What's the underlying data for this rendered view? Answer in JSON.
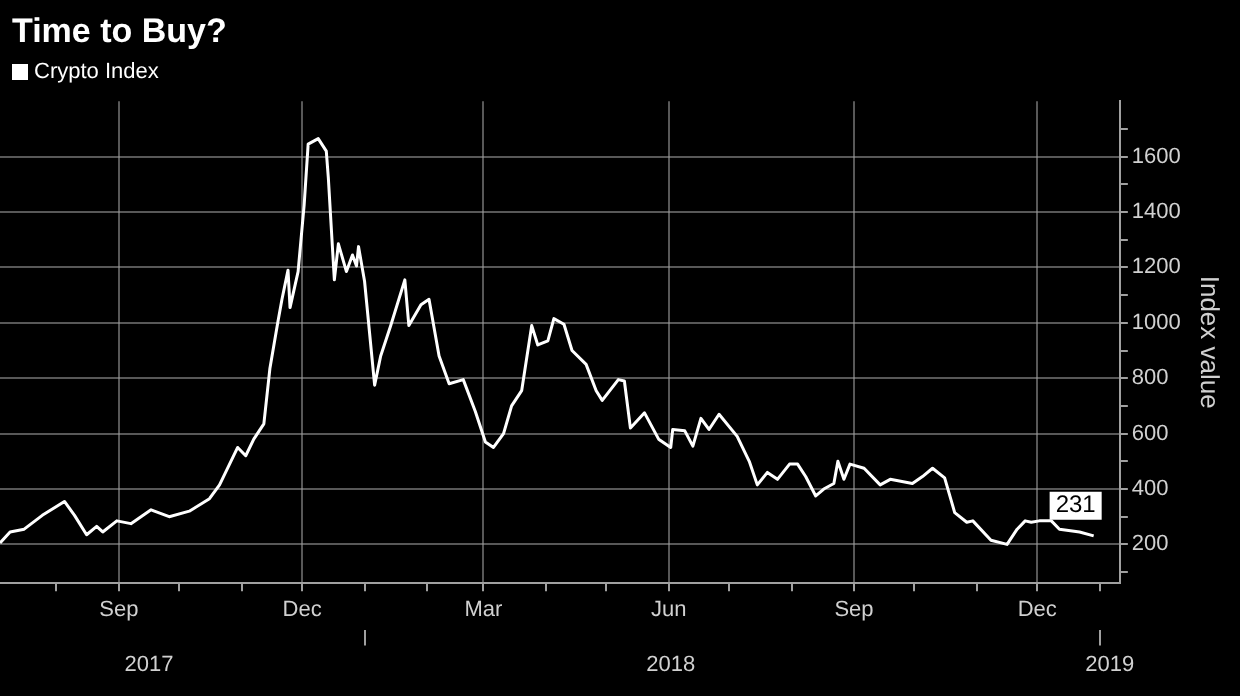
{
  "chart_data": {
    "type": "line",
    "title": "Time to Buy?",
    "ylabel": "Index value",
    "legend": "top left",
    "grid": true,
    "marker": "none",
    "line_style": "solid",
    "xlim": [
      "2017-07-04",
      "2019-01-11"
    ],
    "xticks": [
      {
        "value": "2017-08-01",
        "label": null
      },
      {
        "value": "2017-09-01",
        "label": "Sep"
      },
      {
        "value": "2017-10-01",
        "label": null
      },
      {
        "value": "2017-11-01",
        "label": null
      },
      {
        "value": "2017-12-01",
        "label": "Dec"
      },
      {
        "value": "2018-01-01",
        "label": null
      },
      {
        "value": "2018-02-01",
        "label": null
      },
      {
        "value": "2018-03-01",
        "label": "Mar"
      },
      {
        "value": "2018-04-01",
        "label": null
      },
      {
        "value": "2018-05-01",
        "label": null
      },
      {
        "value": "2018-06-01",
        "label": "Jun"
      },
      {
        "value": "2018-07-01",
        "label": null
      },
      {
        "value": "2018-08-01",
        "label": null
      },
      {
        "value": "2018-09-01",
        "label": "Sep"
      },
      {
        "value": "2018-10-01",
        "label": null
      },
      {
        "value": "2018-11-01",
        "label": null
      },
      {
        "value": "2018-12-01",
        "label": "Dec"
      },
      {
        "value": "2019-01-01",
        "label": null
      }
    ],
    "x2lim": [
      "2017-07-04",
      "2019-01-11"
    ],
    "x2ticks": [
      {
        "value": "2017-09-16",
        "label": "2017"
      },
      {
        "value": "2018-01-01",
        "label": null
      },
      {
        "value": "2018-06-02",
        "label": "2018"
      },
      {
        "value": "2019-01-01",
        "label": null
      },
      {
        "value": "2019-01-06",
        "label": "2019"
      }
    ],
    "ylim": [
      60,
      1800
    ],
    "yticks": [
      {
        "value": 100,
        "label": null
      },
      200,
      {
        "value": 300,
        "label": null
      },
      400,
      {
        "value": 500,
        "label": null
      },
      600,
      {
        "value": 700,
        "label": null
      },
      800,
      {
        "value": 900,
        "label": null
      },
      1000,
      {
        "value": 1100,
        "label": null
      },
      1200,
      {
        "value": 1300,
        "label": null
      },
      1400,
      {
        "value": 1500,
        "label": null
      },
      1600,
      {
        "value": 1700,
        "label": null
      }
    ],
    "annotations": [
      {
        "text": "231",
        "x": "2018-12-29",
        "y": 231
      }
    ],
    "series": [
      {
        "name": "Crypto Index",
        "color": "#ffffff",
        "x": [
          "2017-07-04",
          "2017-07-09",
          "2017-07-16",
          "2017-07-25",
          "2017-08-05",
          "2017-08-10",
          "2017-08-16",
          "2017-08-21",
          "2017-08-24",
          "2017-08-31",
          "2017-09-07",
          "2017-09-17",
          "2017-09-26",
          "2017-10-06",
          "2017-10-16",
          "2017-10-21",
          "2017-10-30",
          "2017-11-03",
          "2017-11-07",
          "2017-11-12",
          "2017-11-15",
          "2017-11-19",
          "2017-11-21",
          "2017-11-24",
          "2017-11-25",
          "2017-11-29",
          "2017-12-02",
          "2017-12-04",
          "2017-12-09",
          "2017-12-13",
          "2017-12-14",
          "2017-12-17",
          "2017-12-19",
          "2017-12-23",
          "2017-12-26",
          "2017-12-28",
          "2017-12-29",
          "2018-01-01",
          "2018-01-06",
          "2018-01-09",
          "2018-01-14",
          "2018-01-21",
          "2018-01-23",
          "2018-01-29",
          "2018-02-02",
          "2018-02-07",
          "2018-02-12",
          "2018-02-19",
          "2018-02-25",
          "2018-03-02",
          "2018-03-06",
          "2018-03-11",
          "2018-03-15",
          "2018-03-20",
          "2018-03-25",
          "2018-03-28",
          "2018-04-02",
          "2018-04-05",
          "2018-04-10",
          "2018-04-14",
          "2018-04-21",
          "2018-04-26",
          "2018-04-29",
          "2018-05-07",
          "2018-05-10",
          "2018-05-13",
          "2018-05-20",
          "2018-05-27",
          "2018-06-02",
          "2018-06-03",
          "2018-06-09",
          "2018-06-13",
          "2018-06-17",
          "2018-06-21",
          "2018-06-26",
          "2018-07-05",
          "2018-07-11",
          "2018-07-15",
          "2018-07-20",
          "2018-07-25",
          "2018-07-31",
          "2018-08-04",
          "2018-08-08",
          "2018-08-13",
          "2018-08-17",
          "2018-08-22",
          "2018-08-24",
          "2018-08-27",
          "2018-08-30",
          "2018-09-06",
          "2018-09-14",
          "2018-09-19",
          "2018-09-30",
          "2018-10-05",
          "2018-10-10",
          "2018-10-16",
          "2018-10-21",
          "2018-10-27",
          "2018-10-30",
          "2018-11-08",
          "2018-11-16",
          "2018-11-21",
          "2018-11-25",
          "2018-11-28",
          "2018-12-02",
          "2018-12-08",
          "2018-12-12",
          "2018-12-22",
          "2018-12-29"
        ],
        "values": [
          205,
          245,
          255,
          305,
          355,
          305,
          235,
          265,
          245,
          285,
          275,
          325,
          300,
          320,
          365,
          415,
          550,
          520,
          580,
          635,
          835,
          1005,
          1085,
          1190,
          1055,
          1185,
          1425,
          1645,
          1665,
          1620,
          1525,
          1155,
          1285,
          1185,
          1245,
          1205,
          1275,
          1150,
          775,
          880,
          990,
          1155,
          990,
          1065,
          1085,
          880,
          780,
          795,
          680,
          570,
          550,
          600,
          700,
          755,
          990,
          920,
          935,
          1015,
          995,
          900,
          850,
          755,
          720,
          795,
          790,
          620,
          675,
          580,
          550,
          615,
          610,
          555,
          655,
          615,
          670,
          590,
          500,
          415,
          460,
          435,
          490,
          490,
          445,
          375,
          400,
          420,
          500,
          435,
          490,
          475,
          415,
          435,
          420,
          445,
          475,
          440,
          315,
          280,
          285,
          215,
          200,
          255,
          285,
          280,
          285,
          285,
          255,
          245,
          231
        ]
      }
    ]
  }
}
